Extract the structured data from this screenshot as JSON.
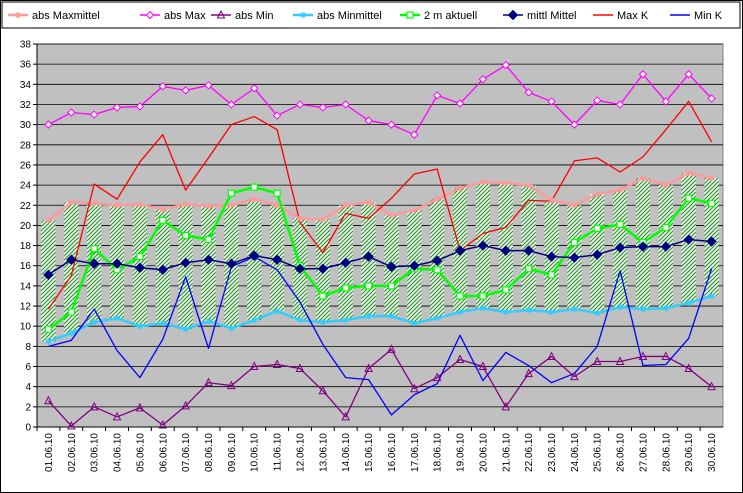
{
  "chart_data": {
    "type": "line",
    "title": "",
    "xlabel": "",
    "ylabel": "",
    "ylim": [
      0,
      38
    ],
    "yticks": [
      0,
      2,
      4,
      6,
      8,
      10,
      12,
      14,
      16,
      18,
      20,
      22,
      24,
      26,
      28,
      30,
      32,
      34,
      36,
      38
    ],
    "grid": "horizontal",
    "legend_position": "top",
    "background": "#c0c0c0",
    "categories": [
      "01.06.10",
      "02.06.10",
      "03.06.10",
      "04.06.10",
      "05.06.10",
      "06.06.10",
      "07.06.10",
      "08.06.10",
      "09.06.10",
      "10.06.10",
      "11.06.10",
      "12.06.10",
      "13.06.10",
      "14.06.10",
      "15.06.10",
      "16.06.10",
      "17.06.10",
      "18.06.10",
      "19.06.10",
      "20.06.10",
      "21.06.10",
      "22.06.10",
      "23.06.10",
      "24.06.10",
      "25.06.10",
      "26.06.10",
      "27.06.10",
      "28.06.10",
      "29.06.10",
      "30.06.10"
    ],
    "series": [
      {
        "name": "abs Maxmittel",
        "color": "#ff9999",
        "marker": "asterisk",
        "values": [
          20.5,
          22.3,
          22.2,
          22.0,
          22.1,
          21.6,
          22.1,
          21.9,
          22.0,
          22.6,
          22.0,
          20.7,
          20.6,
          22.0,
          22.3,
          21.0,
          21.5,
          22.6,
          23.7,
          24.3,
          24.2,
          24.0,
          22.5,
          22.0,
          23.1,
          23.5,
          24.7,
          24.0,
          25.2,
          24.7
        ]
      },
      {
        "name": "abs Max",
        "color": "#ff00ff",
        "marker": "diamond-open",
        "values": [
          30.0,
          31.2,
          31.0,
          31.7,
          31.8,
          33.8,
          33.4,
          33.9,
          32.0,
          33.6,
          30.9,
          32.0,
          31.7,
          32.0,
          30.4,
          30.0,
          29.0,
          32.9,
          32.1,
          34.5,
          35.9,
          33.2,
          32.3,
          30.0,
          32.4,
          32.0,
          35.0,
          32.3,
          35.0,
          32.6
        ]
      },
      {
        "name": "abs Min",
        "color": "#800080",
        "marker": "triangle-open",
        "values": [
          2.6,
          0.1,
          2.0,
          1.0,
          1.9,
          0.2,
          2.1,
          4.4,
          4.1,
          6.0,
          6.2,
          5.8,
          3.6,
          1.0,
          5.8,
          7.7,
          3.8,
          4.9,
          6.7,
          6.0,
          2.0,
          5.3,
          7.0,
          5.0,
          6.5,
          6.5,
          7.0,
          7.0,
          5.8,
          4.0
        ]
      },
      {
        "name": "abs Minmittel",
        "color": "#33ccff",
        "marker": "asterisk",
        "values": [
          8.5,
          9.3,
          10.4,
          10.8,
          10.0,
          10.3,
          9.7,
          10.5,
          9.8,
          10.6,
          11.5,
          10.6,
          10.4,
          10.6,
          11.0,
          11.0,
          10.3,
          10.8,
          11.4,
          11.8,
          11.4,
          11.6,
          11.4,
          11.7,
          11.3,
          11.9,
          11.7,
          11.8,
          12.3,
          13.0
        ]
      },
      {
        "name": "2 m aktuell",
        "color": "#00ff00",
        "marker": "square-open",
        "values": [
          9.7,
          11.4,
          17.7,
          15.6,
          16.9,
          20.5,
          19.0,
          18.6,
          23.2,
          23.8,
          23.2,
          16.0,
          13.0,
          13.8,
          14.0,
          14.0,
          15.7,
          15.6,
          13.0,
          13.0,
          13.6,
          15.7,
          15.1,
          18.3,
          19.7,
          20.1,
          18.3,
          19.8,
          22.7,
          22.2
        ]
      },
      {
        "name": "mittl Mittel",
        "color": "#000080",
        "marker": "diamond-filled",
        "values": [
          15.1,
          16.6,
          16.2,
          16.2,
          15.8,
          15.6,
          16.3,
          16.6,
          16.2,
          17.0,
          16.6,
          15.7,
          15.7,
          16.3,
          16.9,
          15.9,
          16.0,
          16.5,
          17.5,
          18.0,
          17.5,
          17.5,
          16.9,
          16.8,
          17.1,
          17.8,
          17.9,
          17.9,
          18.6,
          18.4
        ]
      },
      {
        "name": "Max K",
        "color": "#ff0000",
        "marker": "none",
        "values": [
          11.7,
          15.0,
          24.1,
          22.6,
          26.3,
          29.0,
          23.5,
          26.7,
          30.0,
          30.8,
          29.5,
          20.3,
          17.3,
          21.2,
          20.7,
          22.7,
          25.1,
          25.6,
          17.5,
          19.2,
          19.8,
          22.5,
          22.4,
          26.4,
          26.7,
          25.3,
          26.8,
          29.5,
          32.3,
          28.3
        ]
      },
      {
        "name": "Min K",
        "color": "#0000ff",
        "marker": "none",
        "values": [
          8.0,
          8.6,
          11.7,
          7.6,
          4.9,
          8.7,
          14.9,
          7.8,
          15.9,
          16.9,
          15.6,
          12.4,
          8.2,
          4.9,
          4.7,
          1.2,
          3.2,
          4.3,
          9.1,
          4.6,
          7.4,
          6.1,
          4.4,
          5.3,
          8.0,
          15.5,
          6.1,
          6.2,
          8.8,
          15.7
        ]
      }
    ]
  }
}
